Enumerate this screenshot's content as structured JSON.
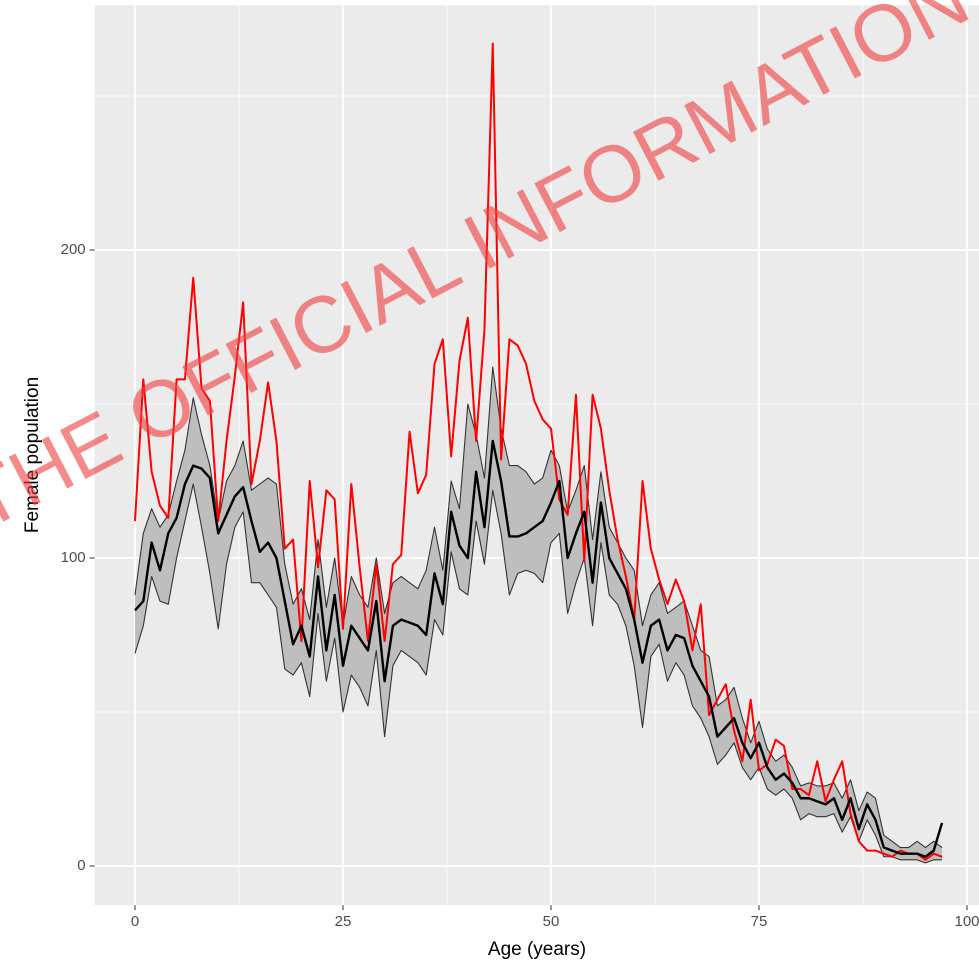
{
  "chart_data": {
    "type": "line",
    "xlabel": "Age (years)",
    "ylabel": "Female population",
    "annotation": "THE OFFICIAL INFORMATION",
    "x": [
      0,
      1,
      2,
      3,
      4,
      5,
      6,
      7,
      8,
      9,
      10,
      11,
      12,
      13,
      14,
      15,
      16,
      17,
      18,
      19,
      20,
      21,
      22,
      23,
      24,
      25,
      26,
      27,
      28,
      29,
      30,
      31,
      32,
      33,
      34,
      35,
      36,
      37,
      38,
      39,
      40,
      41,
      42,
      43,
      44,
      45,
      46,
      47,
      48,
      49,
      50,
      51,
      52,
      53,
      54,
      55,
      56,
      57,
      58,
      59,
      60,
      61,
      62,
      63,
      64,
      65,
      66,
      67,
      68,
      69,
      70,
      71,
      72,
      73,
      74,
      75,
      76,
      77,
      78,
      79,
      80,
      81,
      82,
      83,
      84,
      85,
      86,
      87,
      88,
      89,
      90,
      91,
      92,
      93,
      94,
      95,
      96,
      97
    ],
    "band": {
      "fill": "#bebebe",
      "stroke": "#333333",
      "lower": [
        69,
        78,
        94,
        86,
        85,
        100,
        112,
        124,
        110,
        95,
        77,
        98,
        110,
        115,
        92,
        92,
        88,
        84,
        64,
        62,
        66,
        55,
        82,
        60,
        74,
        50,
        62,
        58,
        52,
        70,
        42,
        65,
        70,
        68,
        66,
        62,
        80,
        75,
        102,
        90,
        88,
        112,
        98,
        122,
        108,
        88,
        95,
        96,
        95,
        92,
        105,
        108,
        82,
        92,
        100,
        78,
        105,
        88,
        85,
        78,
        65,
        45,
        68,
        72,
        60,
        66,
        62,
        52,
        48,
        42,
        33,
        36,
        40,
        32,
        28,
        32,
        25,
        23,
        25,
        22,
        15,
        17,
        16,
        16,
        17,
        11,
        16,
        8,
        15,
        10,
        3,
        3,
        2,
        2,
        2,
        1,
        2,
        2
      ],
      "upper": [
        88,
        108,
        116,
        110,
        114,
        125,
        135,
        152,
        140,
        130,
        112,
        125,
        130,
        138,
        122,
        124,
        126,
        124,
        98,
        85,
        90,
        80,
        106,
        84,
        100,
        78,
        94,
        88,
        84,
        100,
        82,
        92,
        94,
        92,
        90,
        96,
        110,
        96,
        125,
        116,
        150,
        140,
        126,
        162,
        142,
        130,
        130,
        128,
        124,
        126,
        135,
        130,
        115,
        122,
        130,
        106,
        128,
        110,
        105,
        100,
        96,
        78,
        88,
        92,
        82,
        84,
        86,
        78,
        70,
        68,
        52,
        54,
        58,
        48,
        40,
        47,
        38,
        34,
        36,
        32,
        26,
        27,
        26,
        26,
        27,
        22,
        28,
        18,
        24,
        22,
        10,
        8,
        6,
        6,
        8,
        6,
        8,
        6
      ]
    },
    "series": [
      {
        "color": "#ff0000",
        "values": [
          112,
          158,
          128,
          117,
          113,
          158,
          158,
          191,
          155,
          151,
          112,
          138,
          159,
          183,
          124,
          138,
          157,
          138,
          103,
          106,
          73,
          125,
          97,
          122,
          119,
          77,
          124,
          97,
          73,
          98,
          73,
          98,
          101,
          141,
          121,
          127,
          163,
          171,
          133,
          164,
          178,
          138,
          174,
          267,
          132,
          171,
          169,
          163,
          151,
          145,
          142,
          119,
          114,
          153,
          99,
          153,
          142,
          122,
          106,
          94,
          80,
          125,
          103,
          93,
          85,
          93,
          86,
          70,
          85,
          49,
          54,
          59,
          44,
          34,
          54,
          31,
          33,
          41,
          39,
          25,
          25,
          23,
          34,
          21,
          28,
          34,
          17,
          8,
          5,
          5,
          4,
          3,
          5,
          4,
          4,
          2,
          4,
          3
        ]
      },
      {
        "color": "#000000",
        "values": [
          83,
          86,
          105,
          96,
          108,
          113,
          124,
          130,
          129,
          126,
          108,
          114,
          120,
          123,
          112,
          102,
          105,
          100,
          86,
          72,
          78,
          68,
          94,
          70,
          88,
          65,
          78,
          74,
          70,
          86,
          60,
          78,
          80,
          79,
          78,
          75,
          95,
          85,
          115,
          104,
          100,
          128,
          110,
          138,
          125,
          107,
          107,
          108,
          110,
          112,
          118,
          125,
          100,
          108,
          115,
          92,
          118,
          100,
          95,
          90,
          80,
          66,
          78,
          80,
          70,
          75,
          74,
          65,
          60,
          55,
          42,
          45,
          48,
          40,
          35,
          40,
          32,
          28,
          30,
          27,
          22,
          22,
          21,
          20,
          22,
          15,
          22,
          12,
          20,
          15,
          6,
          5,
          4,
          4,
          4,
          3,
          5,
          14
        ]
      }
    ],
    "xlim": [
      -4.85,
      101.85
    ],
    "ylim": [
      -12.7,
      279.5
    ],
    "xticks": [
      0,
      25,
      50,
      75,
      100
    ],
    "yticks": [
      0,
      100,
      200
    ],
    "minor_xticks": [
      12.5,
      37.5,
      62.5,
      87.5
    ],
    "minor_yticks": [
      50,
      150,
      250
    ],
    "grid": true,
    "panel_color": "#ebebeb",
    "grid_color": "#ffffff"
  }
}
